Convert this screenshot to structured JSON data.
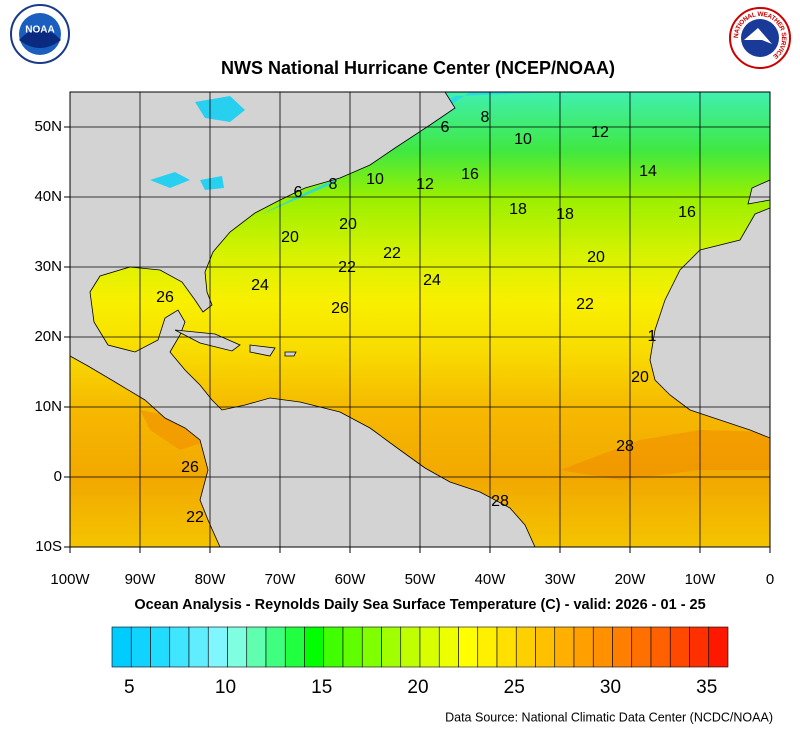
{
  "header": {
    "title": "NWS National Hurricane Center (NCEP/NOAA)",
    "left_logo": "NOAA",
    "right_logo": "NATIONAL WEATHER SERVICE"
  },
  "map": {
    "xlim": [
      -100,
      0
    ],
    "ylim": [
      -10,
      55
    ],
    "xticks": [
      {
        "value": -100,
        "label": "100W"
      },
      {
        "value": -90,
        "label": "90W"
      },
      {
        "value": -80,
        "label": "80W"
      },
      {
        "value": -70,
        "label": "70W"
      },
      {
        "value": -60,
        "label": "60W"
      },
      {
        "value": -50,
        "label": "50W"
      },
      {
        "value": -40,
        "label": "40W"
      },
      {
        "value": -30,
        "label": "30W"
      },
      {
        "value": -20,
        "label": "20W"
      },
      {
        "value": -10,
        "label": "10W"
      },
      0
    ],
    "yticks": [
      {
        "value": -10,
        "label": "10S"
      },
      0,
      {
        "value": 10,
        "label": "10N"
      },
      {
        "value": 20,
        "label": "20N"
      },
      {
        "value": 30,
        "label": "30N"
      },
      {
        "value": 40,
        "label": "40N"
      },
      {
        "value": 50,
        "label": "50N"
      }
    ],
    "contour_labels": [
      "6",
      "8",
      "10",
      "12",
      "14",
      "16",
      "6",
      "8",
      "10",
      "12",
      "16",
      "18",
      "18",
      "20",
      "20",
      "22",
      "22",
      "24",
      "20",
      "24",
      "26",
      "26",
      "22",
      "20",
      "28",
      "26",
      "22",
      "28",
      "1"
    ],
    "subtitle": "Ocean Analysis - Reynolds Daily Sea Surface Temperature (C) - valid: 2026 - 01 - 25"
  },
  "colorbar": {
    "colors": [
      "#00ccff",
      "#10d4ff",
      "#20dcff",
      "#40e6ff",
      "#60eeff",
      "#80f6ff",
      "#80ffe0",
      "#60ffb0",
      "#40ff80",
      "#20ff40",
      "#00ff00",
      "#40ff00",
      "#60ff00",
      "#80ff00",
      "#a0ff00",
      "#c0ff00",
      "#d8ff00",
      "#eeff00",
      "#ffff00",
      "#fff000",
      "#ffe000",
      "#ffd000",
      "#ffc000",
      "#ffb000",
      "#ffa000",
      "#ff9000",
      "#ff8000",
      "#ff7000",
      "#ff6000",
      "#ff4800",
      "#ff3000",
      "#ff1800"
    ],
    "ticks": [
      5,
      10,
      15,
      20,
      25,
      30,
      35
    ]
  },
  "footer": {
    "source": "Data Source: National Climatic Data Center (NCDC/NOAA)"
  }
}
